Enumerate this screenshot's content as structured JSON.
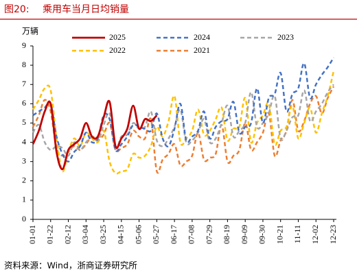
{
  "chart_data": {
    "type": "line",
    "figure_label": "图20:",
    "title": "乘用车当月日均销量",
    "y_label": "万辆",
    "source": "资料来源：Wind，浙商证券研究所",
    "categories": [
      "01-01",
      null,
      null,
      "01-22",
      null,
      null,
      "02-12",
      null,
      null,
      "03-04",
      null,
      null,
      "03-25",
      null,
      null,
      "04-15",
      null,
      null,
      "05-06",
      null,
      null,
      "05-27",
      null,
      null,
      "06-17",
      null,
      null,
      "07-08",
      null,
      null,
      "07-29",
      null,
      null,
      "08-19",
      null,
      null,
      "09-09",
      null,
      null,
      "09-30",
      null,
      null,
      "10-21",
      null,
      null,
      "11-11",
      null,
      null,
      "12-02",
      null,
      null,
      "12-23"
    ],
    "ylim": [
      0,
      9
    ],
    "yticks": [
      0,
      1,
      2,
      3,
      4,
      5,
      6,
      7,
      8,
      9
    ],
    "grid": false,
    "series": [
      {
        "name": "2025",
        "color": "#c00000",
        "dashed": false,
        "values": [
          3.9,
          4.6,
          5.6,
          6.0,
          3.5,
          2.6,
          3.6,
          3.9,
          4.2,
          5.0,
          4.3,
          4.3,
          5.3,
          6.1,
          3.8,
          4.2,
          4.7,
          5.9,
          4.7,
          5.2,
          5.1,
          5.4,
          null,
          null,
          null,
          null,
          null,
          null,
          null,
          null,
          null,
          null,
          null,
          null,
          null,
          null,
          null,
          null,
          null,
          null,
          null,
          null,
          null,
          null,
          null,
          null,
          null,
          null,
          null,
          null,
          null,
          null
        ]
      },
      {
        "name": "2024",
        "color": "#4472c4",
        "dashed": true,
        "values": [
          5.4,
          5.6,
          5.8,
          6.0,
          4.3,
          3.4,
          3.0,
          3.5,
          3.8,
          4.5,
          4.0,
          4.2,
          5.4,
          5.2,
          3.6,
          3.9,
          4.3,
          4.9,
          4.8,
          4.7,
          4.6,
          5.5,
          4.2,
          3.8,
          4.7,
          6.0,
          4.1,
          4.3,
          4.6,
          5.6,
          4.2,
          4.8,
          5.1,
          5.2,
          6.1,
          4.5,
          4.8,
          5.0,
          6.8,
          5.0,
          6.3,
          6.5,
          7.6,
          5.6,
          6.5,
          6.8,
          8.1,
          6.3,
          7.0,
          7.5,
          7.9,
          8.4
        ]
      },
      {
        "name": "2023",
        "color": "#a6a6a6",
        "dashed": true,
        "values": [
          4.5,
          4.9,
          4.0,
          3.6,
          3.8,
          3.7,
          3.3,
          4.0,
          3.6,
          4.0,
          4.3,
          4.1,
          4.9,
          5.5,
          3.7,
          4.3,
          4.4,
          5.0,
          4.7,
          4.8,
          5.6,
          4.1,
          3.8,
          4.2,
          4.8,
          5.7,
          4.0,
          4.1,
          4.5,
          5.2,
          4.0,
          4.2,
          5.0,
          5.9,
          4.3,
          4.6,
          5.0,
          6.6,
          4.8,
          5.0,
          5.5,
          6.4,
          4.2,
          4.6,
          5.3,
          5.4,
          6.7,
          5.1,
          5.6,
          6.0,
          6.6,
          7.0
        ]
      },
      {
        "name": "2022",
        "color": "#ffc000",
        "dashed": true,
        "values": [
          5.7,
          6.2,
          6.8,
          6.7,
          4.2,
          2.5,
          3.5,
          4.2,
          3.8,
          4.5,
          4.2,
          4.0,
          4.6,
          3.0,
          2.4,
          2.5,
          2.6,
          3.4,
          3.2,
          3.3,
          3.8,
          4.8,
          4.3,
          5.1,
          6.4,
          4.0,
          4.2,
          4.6,
          5.7,
          4.4,
          4.6,
          5.2,
          5.8,
          4.1,
          4.7,
          4.8,
          6.3,
          4.0,
          5.0,
          5.4,
          6.0,
          3.9,
          4.6,
          4.8,
          5.9,
          4.2,
          5.0,
          5.8,
          4.5,
          5.5,
          6.4,
          7.7
        ]
      },
      {
        "name": "2021",
        "color": "#ed7d31",
        "dashed": true,
        "values": [
          4.8,
          5.4,
          6.2,
          5.6,
          3.7,
          3.3,
          3.5,
          3.8,
          3.6,
          3.9,
          4.3,
          4.1,
          4.4,
          5.0,
          3.6,
          3.7,
          3.9,
          4.6,
          4.3,
          4.2,
          5.2,
          2.5,
          3.1,
          3.4,
          3.9,
          2.8,
          3.0,
          3.3,
          4.5,
          3.1,
          3.2,
          3.4,
          4.9,
          3.0,
          3.3,
          3.6,
          5.0,
          3.6,
          4.0,
          4.5,
          5.5,
          3.3,
          4.1,
          4.6,
          6.2,
          4.6,
          5.1,
          6.0,
          6.4,
          5.5,
          6.3,
          6.9
        ]
      }
    ]
  }
}
